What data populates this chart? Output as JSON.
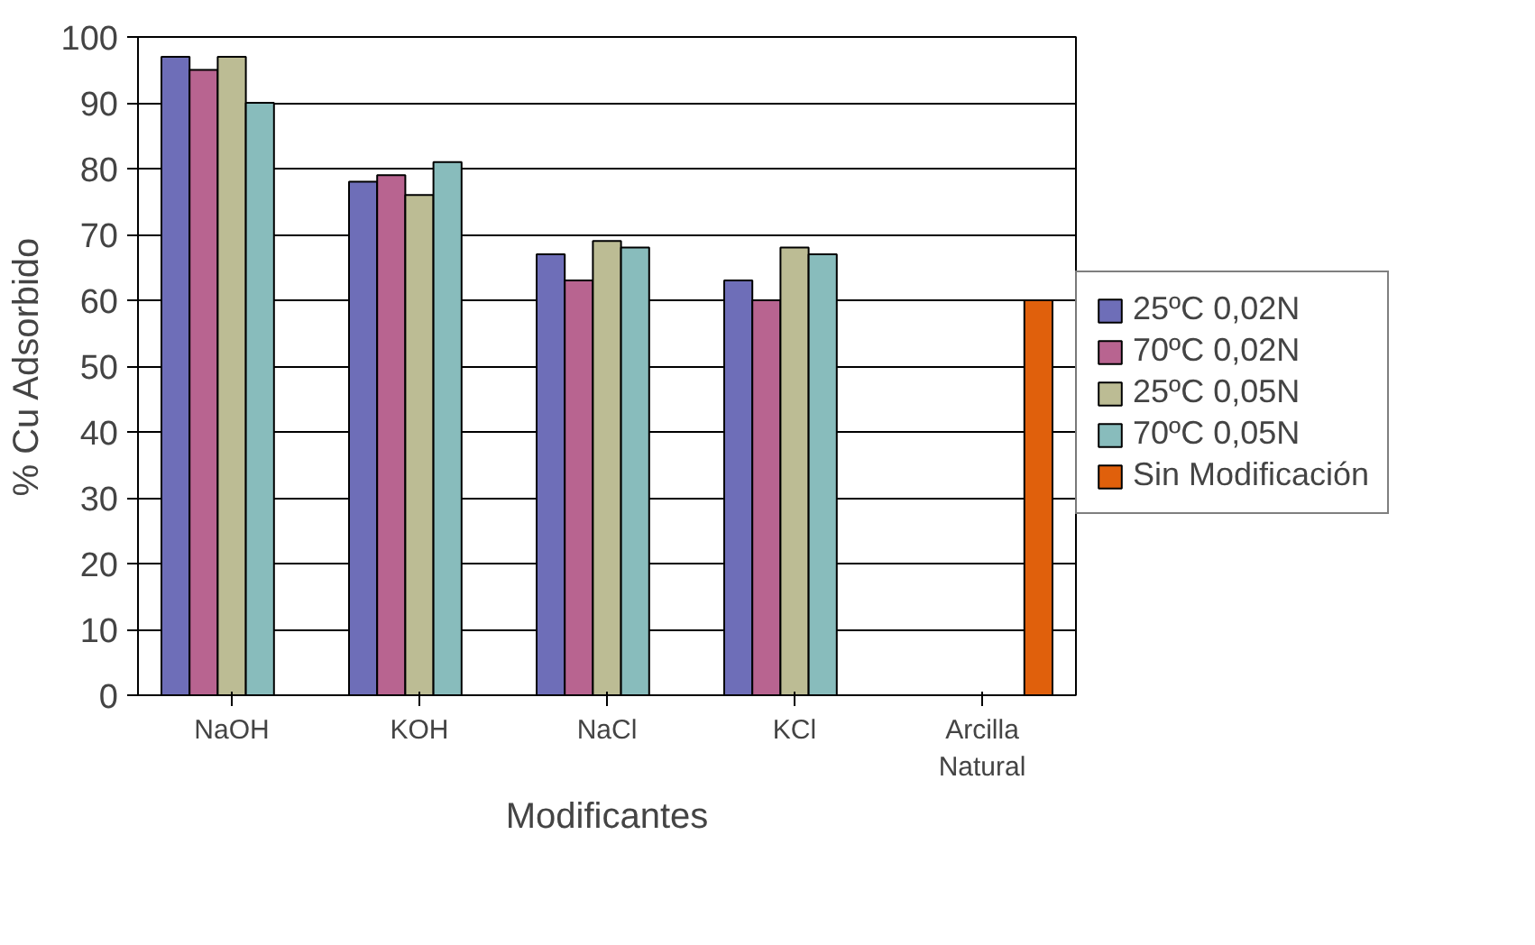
{
  "chart_data": {
    "type": "bar",
    "xlabel": "Modificantes",
    "ylabel": "% Cu Adsorbido",
    "categories": [
      "NaOH",
      "KOH",
      "NaCl",
      "KCl",
      "Arcilla Natural"
    ],
    "series": [
      {
        "name": "25ºC 0,02N",
        "color": "#6e6eb8",
        "values": [
          97,
          78,
          67,
          63,
          null
        ]
      },
      {
        "name": "70ºC 0,02N",
        "color": "#b86490",
        "values": [
          95,
          79,
          63,
          60,
          null
        ]
      },
      {
        "name": "25ºC 0,05N",
        "color": "#bcbc94",
        "values": [
          97,
          76,
          69,
          68,
          null
        ]
      },
      {
        "name": "70ºC 0,05N",
        "color": "#88bcbc",
        "values": [
          90,
          81,
          68,
          67,
          null
        ]
      },
      {
        "name": "Sin Modificación",
        "color": "#e0600c",
        "values": [
          null,
          null,
          null,
          null,
          60
        ]
      }
    ],
    "ylim": [
      0,
      100
    ],
    "yticks": [
      0,
      10,
      20,
      30,
      40,
      50,
      60,
      70,
      80,
      90,
      100
    ],
    "grid": "y",
    "legend": "right"
  }
}
